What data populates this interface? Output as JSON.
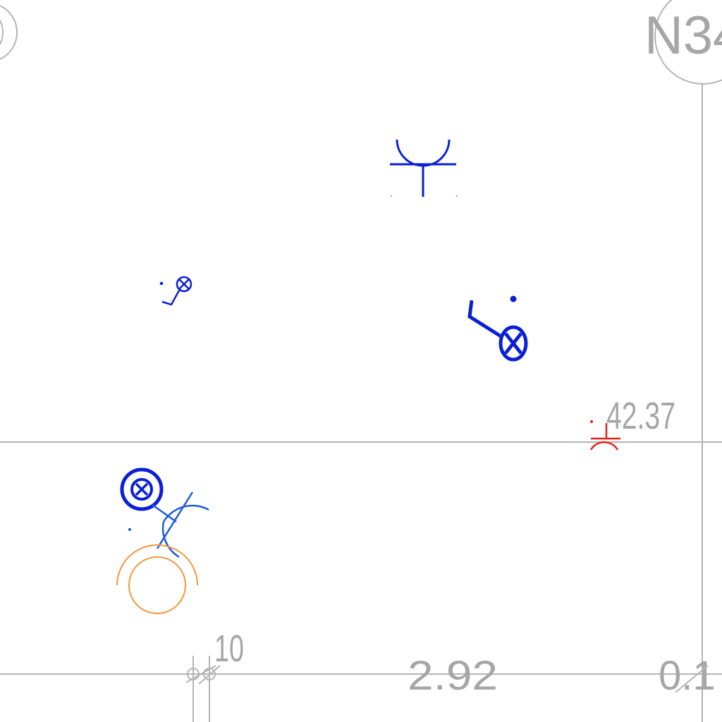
{
  "drawing": {
    "grid_bubble_label": "N34",
    "elevation_label": "42.37",
    "dimensions": {
      "small": "10",
      "main": "2.92",
      "edge": "0.1"
    }
  },
  "colors": {
    "background": "#ffffff",
    "gridline": "#b4b4b4",
    "text": "#a6a6a6",
    "symbol_blue": "#0a1fd6",
    "symbol_red": "#e8221a",
    "symbol_orange": "#f2963f"
  }
}
